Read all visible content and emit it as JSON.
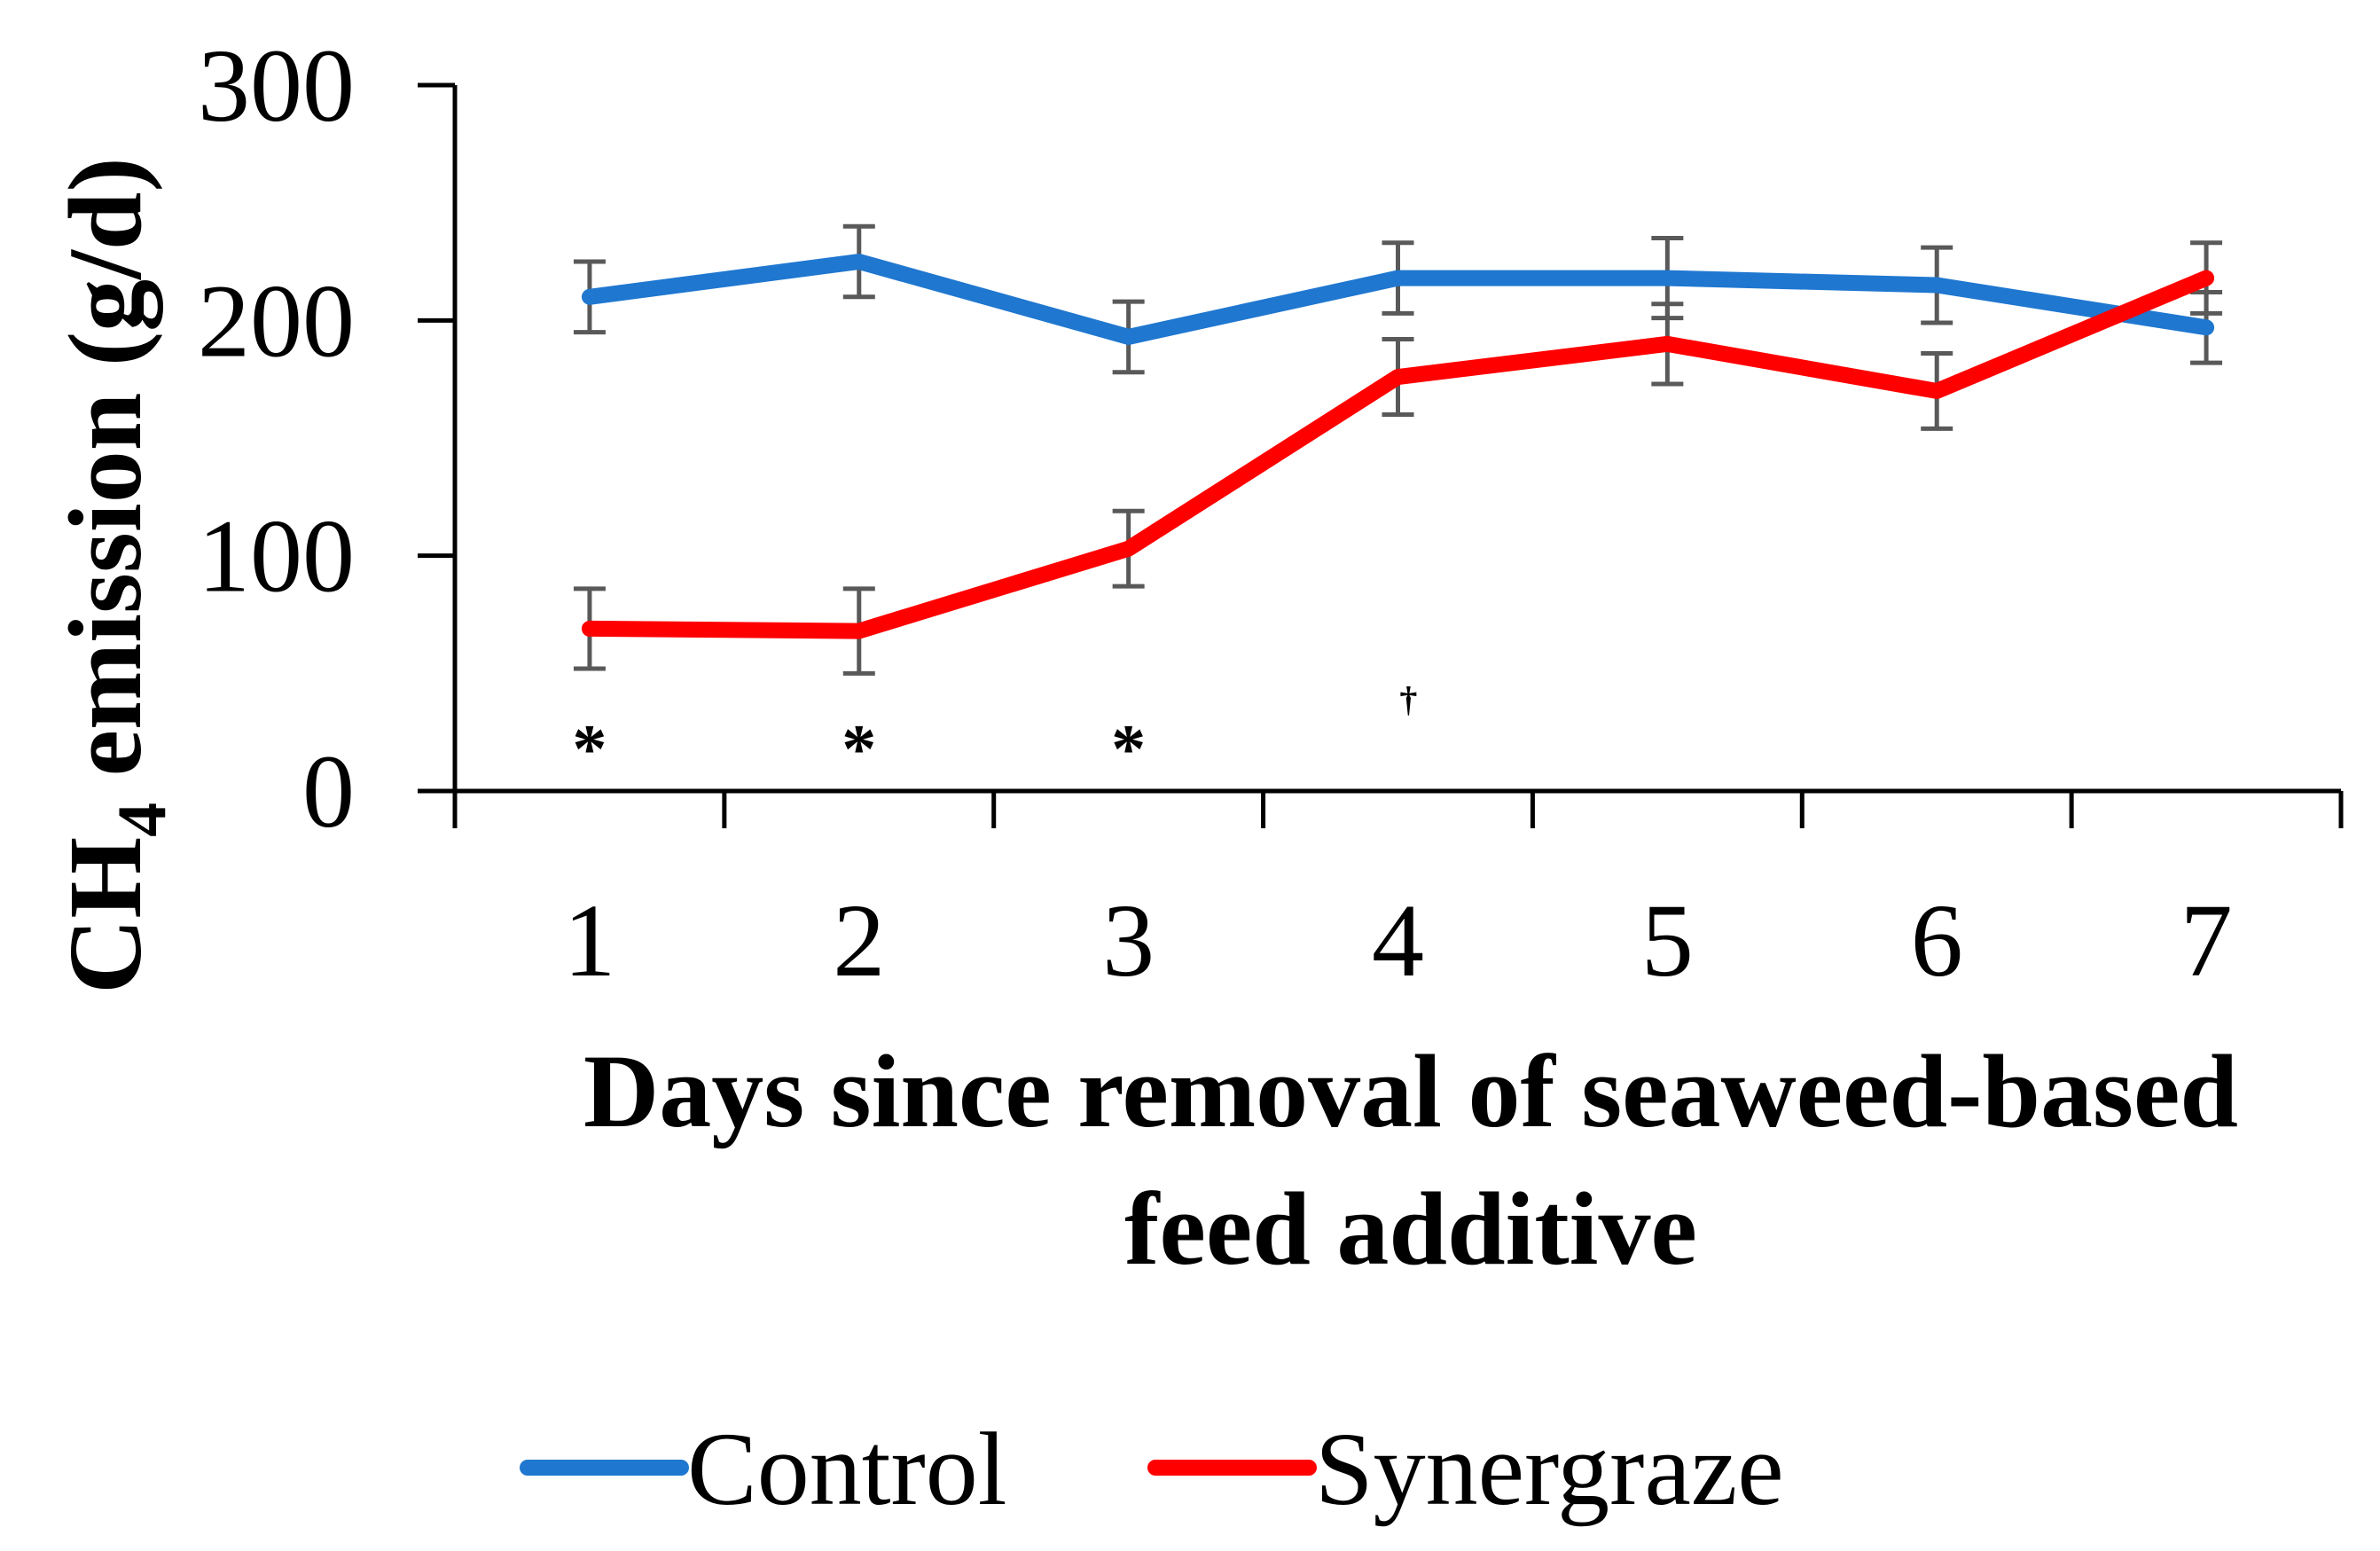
{
  "chart_data": {
    "type": "line",
    "title": "",
    "xlabel_lines": [
      "Days since removal of seaweed-based",
      "feed additive"
    ],
    "ylabel": {
      "prefix": "CH",
      "subscript": "4",
      "suffix": " emission (g/d)"
    },
    "categories": [
      "1",
      "2",
      "3",
      "4",
      "5",
      "6",
      "7"
    ],
    "ylim": [
      0,
      300
    ],
    "yticks": [
      0,
      100,
      200,
      300
    ],
    "grid": false,
    "legend_position": "bottom",
    "series": [
      {
        "name": "Control",
        "color": "#1f77d0",
        "values": [
          210,
          225,
          193,
          218,
          218,
          215,
          197
        ],
        "errors": [
          15,
          15,
          15,
          15,
          17,
          16,
          15
        ]
      },
      {
        "name": "Synergraze",
        "color": "#ff0000",
        "values": [
          69,
          68,
          103,
          176,
          190,
          170,
          218
        ],
        "errors": [
          17,
          18,
          16,
          16,
          17,
          16,
          15
        ]
      }
    ],
    "annotations": [
      {
        "text": "*",
        "x_between": [
          0,
          1
        ],
        "y": 25
      },
      {
        "text": "*",
        "x_between": [
          1,
          2
        ],
        "y": 25
      },
      {
        "text": "*",
        "x_between": [
          2,
          3
        ],
        "y": 25
      },
      {
        "text": "†",
        "x_between": [
          3,
          4
        ],
        "y": 37
      }
    ],
    "error_bar_color": "#595959"
  }
}
